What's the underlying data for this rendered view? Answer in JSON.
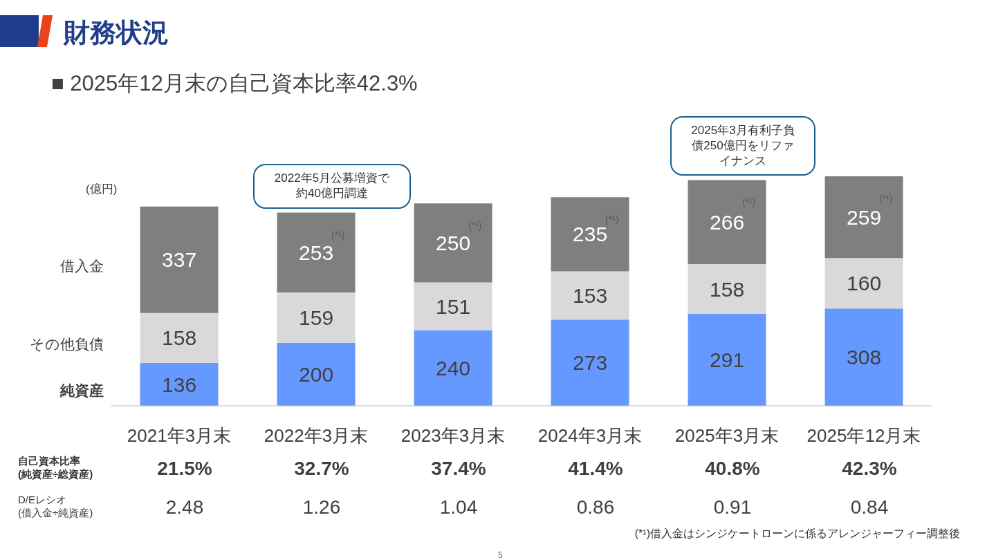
{
  "chart_data": [
    {
      "type": "bar",
      "title": "財務状況",
      "subtitle": "■ 2025年12月末の自己資本比率42.3%",
      "ylabel": "(億円)",
      "stacked": true,
      "data_labels": true,
      "legend": "left",
      "tick_labels": "x",
      "categories": [
        "2021年3月末",
        "2022年3月末",
        "2023年3月末",
        "2024年3月末",
        "2025年3月末",
        "2025年12月末"
      ],
      "series": [
        {
          "name": "純資産",
          "color": "#6699ff",
          "values": [
            136,
            200,
            240,
            273,
            291,
            308
          ]
        },
        {
          "name": "その他負債",
          "color": "#d9d9d9",
          "values": [
            158,
            159,
            151,
            153,
            158,
            160
          ]
        },
        {
          "name": "借入金",
          "color": "#7f7f7f",
          "values": [
            337,
            253,
            250,
            235,
            266,
            259
          ]
        }
      ],
      "annotations": [
        "2022年5月公募増資で約40億円調達",
        "2025年3月有利子負債250億円をリファイナンス",
        "(*¹)",
        "(*¹)",
        "(*¹)",
        "(*¹)",
        "(*¹)",
        "(*¹)借入金はシンジケートローンに係るアレンジャーフィー調整後",
        "5"
      ]
    },
    {
      "type": "other",
      "y_categories": [
        "自己資本比率\n(純資産÷総資産)",
        "D/Eレシオ\n(借入金÷純資産)"
      ],
      "cell_labels": [
        [
          "21.5%",
          "32.7%",
          "37.4%",
          "41.4%",
          "40.8%",
          "42.3%"
        ],
        [
          "2.48",
          "1.26",
          "1.04",
          "0.86",
          "0.91",
          "0.84"
        ]
      ]
    }
  ]
}
